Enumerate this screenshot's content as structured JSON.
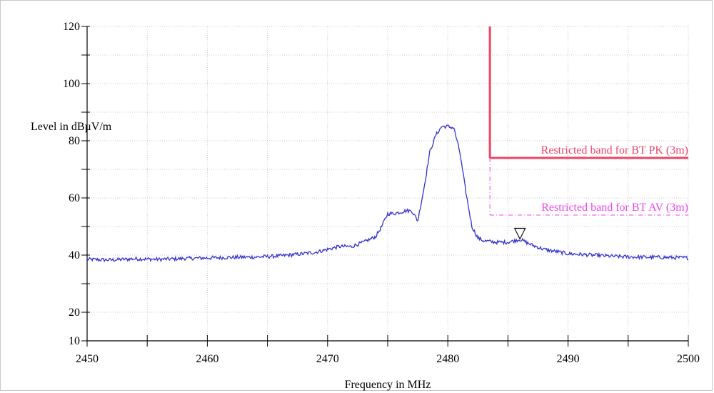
{
  "chart_data": {
    "type": "line",
    "xlabel": "Frequency in MHz",
    "ylabel": "Level in dBµV/m",
    "xlim": [
      2450,
      2500
    ],
    "ylim": [
      10,
      120
    ],
    "x_ticks": [
      2450,
      2460,
      2470,
      2480,
      2490,
      2500
    ],
    "y_ticks": [
      10,
      20,
      40,
      60,
      80,
      100,
      120
    ],
    "y_minor_step": 10,
    "x_minor_step": 5,
    "grid": true,
    "series": [
      {
        "color": "#3333cc",
        "x": [
          2450,
          2452,
          2454,
          2456,
          2458,
          2460,
          2462,
          2464,
          2466,
          2468,
          2469,
          2470,
          2471,
          2472,
          2473,
          2474,
          2474.5,
          2475,
          2475.5,
          2476,
          2476.5,
          2477,
          2477.5,
          2478,
          2478.5,
          2479,
          2479.5,
          2480,
          2480.5,
          2481,
          2481.5,
          2482,
          2482.5,
          2483,
          2484,
          2485,
          2486,
          2487,
          2488,
          2490,
          2492,
          2494,
          2496,
          2498,
          2500
        ],
        "y": [
          38.5,
          38.3,
          38.7,
          38.5,
          38.8,
          39.0,
          39.2,
          39.3,
          39.7,
          40.5,
          41.0,
          42.0,
          43.0,
          43.0,
          44.5,
          46.5,
          50,
          54.5,
          54.5,
          55,
          55.5,
          55.5,
          52,
          63,
          76,
          82,
          85,
          85,
          84.5,
          76,
          62,
          50,
          46,
          45,
          44.5,
          44.5,
          45.5,
          43.5,
          42,
          40.5,
          40,
          39.5,
          39.3,
          39.2,
          39.0
        ]
      }
    ],
    "limit_lines": [
      {
        "label": "Restricted band for  BT   PK (3m)",
        "color": "#ee4466",
        "frequency_start": 2483.5,
        "frequency_end": 2500,
        "level": 74,
        "style": "solid"
      },
      {
        "label": "Restricted band for  BT AV (3m)",
        "color": "#ee44ee",
        "frequency_start": 2483.5,
        "frequency_end": 2500,
        "level": 54,
        "style": "dashed"
      }
    ],
    "marker": {
      "symbol": "▽",
      "frequency": 2486.0,
      "level": 45.5
    }
  }
}
